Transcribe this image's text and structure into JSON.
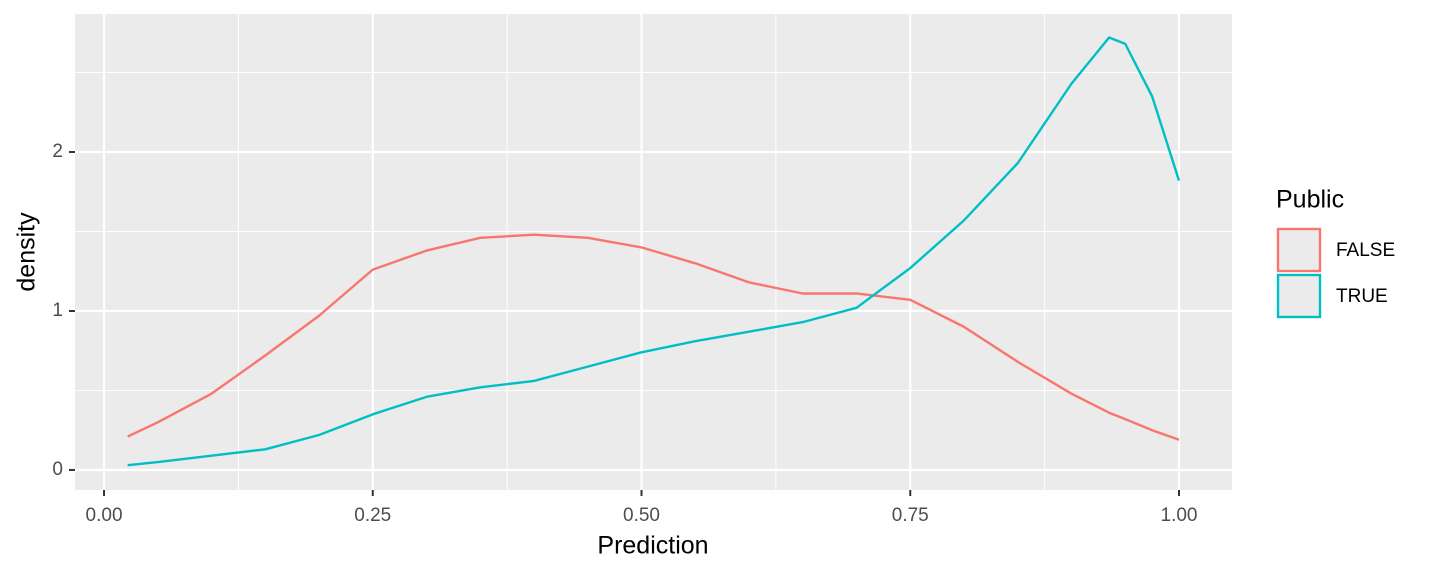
{
  "chart_data": {
    "type": "line",
    "xlabel": "Prediction",
    "ylabel": "density",
    "x": [
      0.022,
      0.05,
      0.1,
      0.15,
      0.2,
      0.25,
      0.3,
      0.35,
      0.4,
      0.45,
      0.5,
      0.55,
      0.6,
      0.65,
      0.7,
      0.75,
      0.8,
      0.85,
      0.9,
      0.935,
      0.95,
      0.975,
      1.0
    ],
    "series": [
      {
        "name": "FALSE",
        "color": "#f8766d",
        "values": [
          0.21,
          0.3,
          0.48,
          0.72,
          0.97,
          1.26,
          1.38,
          1.46,
          1.48,
          1.46,
          1.4,
          1.3,
          1.18,
          1.11,
          1.11,
          1.07,
          0.9,
          0.68,
          0.48,
          0.36,
          0.32,
          0.25,
          0.19
        ]
      },
      {
        "name": "TRUE",
        "color": "#00bfc4",
        "values": [
          0.03,
          0.05,
          0.09,
          0.13,
          0.22,
          0.35,
          0.46,
          0.52,
          0.56,
          0.65,
          0.74,
          0.81,
          0.87,
          0.93,
          1.02,
          1.27,
          1.57,
          1.93,
          2.43,
          2.72,
          2.68,
          2.35,
          1.82
        ]
      }
    ],
    "legend_title": "Public",
    "legend": "right",
    "xlim": [
      -0.027,
      1.0493
    ],
    "ylim": [
      -0.126,
      2.868
    ],
    "xticks": [
      {
        "value": 0,
        "label": "0.00"
      },
      {
        "value": 0.25,
        "label": "0.25"
      },
      {
        "value": 0.5,
        "label": "0.50"
      },
      {
        "value": 0.75,
        "label": "0.75"
      },
      {
        "value": 1,
        "label": "1.00"
      }
    ],
    "yticks": [
      0,
      1,
      2
    ],
    "xminorticks": [
      0.125,
      0.375,
      0.625,
      0.875
    ],
    "yminorticks": [
      0.5,
      1.5,
      2.5
    ],
    "grid": true
  }
}
